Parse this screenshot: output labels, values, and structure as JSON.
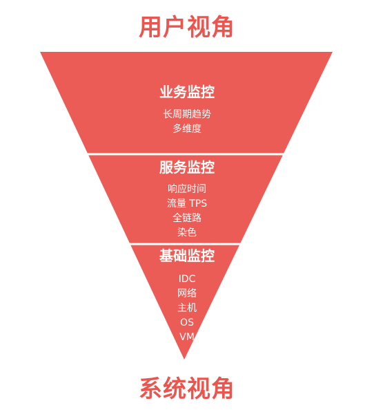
{
  "colors": {
    "funnel_fill": "#ec5c56",
    "divider": "#ffffff",
    "title_text": "#e9554f",
    "layer_text": "#ffffff"
  },
  "labels": {
    "top": "用户视角",
    "bottom": "系统视角"
  },
  "layers": [
    {
      "title": "业务监控",
      "items": [
        "长周期趋势",
        "多维度"
      ]
    },
    {
      "title": "服务监控",
      "items": [
        "响应时间",
        "流量 TPS",
        "全链路",
        "染色"
      ]
    },
    {
      "title": "基础监控",
      "items": [
        "IDC",
        "网络",
        "主机",
        "OS",
        "VM"
      ]
    }
  ]
}
